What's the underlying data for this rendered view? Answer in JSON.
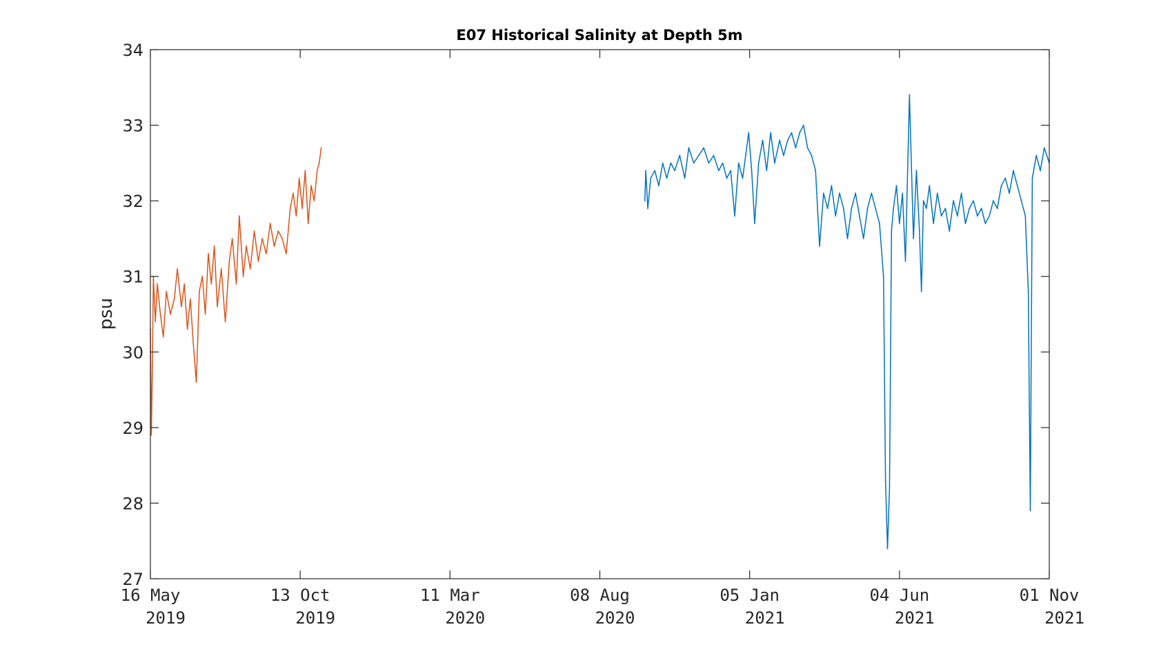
{
  "chart_data": {
    "type": "line",
    "title": "E07 Historical Salinity at Depth 5m",
    "xlabel": "",
    "ylabel": "psu",
    "x_axis_type": "date",
    "xlim": [
      "2019-05-16",
      "2021-11-01"
    ],
    "ylim": [
      27,
      34
    ],
    "grid": false,
    "legend": "none",
    "yticks": [
      "27",
      "28",
      "29",
      "30",
      "31",
      "32",
      "33",
      "34"
    ],
    "xticks": [
      {
        "date": "2019-05-16",
        "line1": "16 May",
        "line2": "2019"
      },
      {
        "date": "2019-10-13",
        "line1": "13 Oct",
        "line2": "2019"
      },
      {
        "date": "2020-03-11",
        "line1": "11 Mar",
        "line2": "2020"
      },
      {
        "date": "2020-08-08",
        "line1": "08 Aug",
        "line2": "2020"
      },
      {
        "date": "2021-01-05",
        "line1": "05 Jan",
        "line2": "2021"
      },
      {
        "date": "2021-06-04",
        "line1": "04 Jun",
        "line2": "2021"
      },
      {
        "date": "2021-11-01",
        "line1": "01 Nov",
        "line2": "2021"
      }
    ],
    "series": [
      {
        "color": "#d95319",
        "x": [
          "2019-05-16",
          "2019-05-17",
          "2019-05-18",
          "2019-05-19",
          "2019-05-21",
          "2019-05-23",
          "2019-05-26",
          "2019-05-29",
          "2019-06-01",
          "2019-06-05",
          "2019-06-09",
          "2019-06-12",
          "2019-06-16",
          "2019-06-19",
          "2019-06-22",
          "2019-06-25",
          "2019-06-28",
          "2019-07-01",
          "2019-07-04",
          "2019-07-07",
          "2019-07-10",
          "2019-07-13",
          "2019-07-16",
          "2019-07-19",
          "2019-07-22",
          "2019-07-26",
          "2019-07-30",
          "2019-08-03",
          "2019-08-06",
          "2019-08-10",
          "2019-08-13",
          "2019-08-17",
          "2019-08-20",
          "2019-08-24",
          "2019-08-28",
          "2019-09-01",
          "2019-09-05",
          "2019-09-09",
          "2019-09-13",
          "2019-09-17",
          "2019-09-21",
          "2019-09-25",
          "2019-09-29",
          "2019-10-03",
          "2019-10-06",
          "2019-10-09",
          "2019-10-12",
          "2019-10-15",
          "2019-10-18",
          "2019-10-21",
          "2019-10-24",
          "2019-10-27",
          "2019-10-30",
          "2019-11-01",
          "2019-11-03"
        ],
        "y": [
          30.3,
          28.9,
          29.8,
          31.0,
          30.4,
          30.9,
          30.5,
          30.2,
          30.8,
          30.5,
          30.7,
          31.1,
          30.6,
          30.9,
          30.3,
          30.7,
          30.1,
          29.6,
          30.8,
          31.0,
          30.5,
          31.3,
          30.9,
          31.4,
          30.6,
          31.1,
          30.4,
          31.2,
          31.5,
          30.9,
          31.8,
          31.0,
          31.4,
          31.1,
          31.6,
          31.2,
          31.5,
          31.3,
          31.7,
          31.4,
          31.6,
          31.5,
          31.3,
          31.9,
          32.1,
          31.8,
          32.3,
          31.9,
          32.4,
          31.7,
          32.2,
          32.0,
          32.4,
          32.5,
          32.7
        ]
      },
      {
        "color": "#0072bd",
        "x": [
          "2020-09-22",
          "2020-09-23",
          "2020-09-25",
          "2020-09-28",
          "2020-10-02",
          "2020-10-06",
          "2020-10-10",
          "2020-10-14",
          "2020-10-18",
          "2020-10-22",
          "2020-10-27",
          "2020-11-01",
          "2020-11-05",
          "2020-11-10",
          "2020-11-15",
          "2020-11-20",
          "2020-11-25",
          "2020-11-30",
          "2020-12-05",
          "2020-12-09",
          "2020-12-13",
          "2020-12-17",
          "2020-12-21",
          "2020-12-25",
          "2020-12-29",
          "2021-01-01",
          "2021-01-04",
          "2021-01-07",
          "2021-01-10",
          "2021-01-14",
          "2021-01-18",
          "2021-01-22",
          "2021-01-26",
          "2021-01-30",
          "2021-02-04",
          "2021-02-08",
          "2021-02-12",
          "2021-02-16",
          "2021-02-20",
          "2021-02-24",
          "2021-02-28",
          "2021-03-04",
          "2021-03-08",
          "2021-03-12",
          "2021-03-16",
          "2021-03-20",
          "2021-03-24",
          "2021-03-28",
          "2021-04-01",
          "2021-04-05",
          "2021-04-09",
          "2021-04-13",
          "2021-04-17",
          "2021-04-21",
          "2021-04-25",
          "2021-04-29",
          "2021-05-03",
          "2021-05-07",
          "2021-05-11",
          "2021-05-15",
          "2021-05-19",
          "2021-05-21",
          "2021-05-23",
          "2021-05-25",
          "2021-05-27",
          "2021-05-29",
          "2021-06-01",
          "2021-06-04",
          "2021-06-07",
          "2021-06-10",
          "2021-06-14",
          "2021-06-18",
          "2021-06-21",
          "2021-06-24",
          "2021-06-26",
          "2021-06-28",
          "2021-07-01",
          "2021-07-04",
          "2021-07-08",
          "2021-07-12",
          "2021-07-16",
          "2021-07-20",
          "2021-07-24",
          "2021-07-28",
          "2021-08-01",
          "2021-08-05",
          "2021-08-09",
          "2021-08-13",
          "2021-08-17",
          "2021-08-21",
          "2021-08-25",
          "2021-08-29",
          "2021-09-02",
          "2021-09-06",
          "2021-09-10",
          "2021-09-14",
          "2021-09-18",
          "2021-09-22",
          "2021-09-26",
          "2021-09-30",
          "2021-10-04",
          "2021-10-08",
          "2021-10-11",
          "2021-10-13",
          "2021-10-15",
          "2021-10-19",
          "2021-10-23",
          "2021-10-27",
          "2021-11-01"
        ],
        "y": [
          32.0,
          32.4,
          31.9,
          32.3,
          32.4,
          32.2,
          32.5,
          32.3,
          32.5,
          32.4,
          32.6,
          32.3,
          32.7,
          32.5,
          32.6,
          32.7,
          32.5,
          32.6,
          32.4,
          32.5,
          32.3,
          32.4,
          31.8,
          32.5,
          32.3,
          32.6,
          32.9,
          32.4,
          31.7,
          32.5,
          32.8,
          32.4,
          32.9,
          32.5,
          32.8,
          32.6,
          32.8,
          32.9,
          32.7,
          32.9,
          33.0,
          32.7,
          32.6,
          32.4,
          31.4,
          32.1,
          31.9,
          32.2,
          31.8,
          32.1,
          31.9,
          31.5,
          31.9,
          32.1,
          31.8,
          31.5,
          31.9,
          32.1,
          31.9,
          31.7,
          31.0,
          28.3,
          27.4,
          28.2,
          31.6,
          31.9,
          32.2,
          31.7,
          32.1,
          31.2,
          33.4,
          31.5,
          32.4,
          31.6,
          30.8,
          32.0,
          31.9,
          32.2,
          31.7,
          32.1,
          31.8,
          31.9,
          31.6,
          32.0,
          31.8,
          32.1,
          31.7,
          31.9,
          32.0,
          31.8,
          31.9,
          31.7,
          31.8,
          32.0,
          31.9,
          32.2,
          32.3,
          32.1,
          32.4,
          32.2,
          32.0,
          31.8,
          30.8,
          27.9,
          32.3,
          32.6,
          32.4,
          32.7,
          32.5
        ]
      }
    ]
  }
}
